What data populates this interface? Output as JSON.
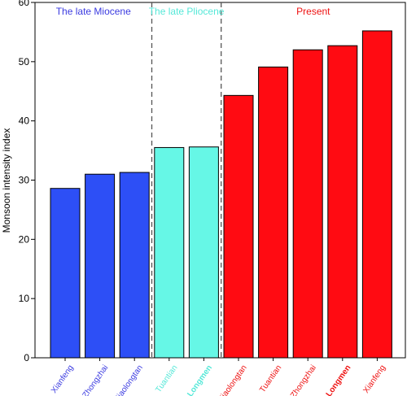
{
  "chart_data": {
    "type": "bar",
    "ylabel": "Monsoon intensity index",
    "ylim": [
      0,
      60
    ],
    "yticks": [
      0,
      10,
      20,
      30,
      40,
      50,
      60
    ],
    "grid": false,
    "groups": [
      {
        "label": "The late Miocene",
        "color": "#2d4ff6",
        "label_color": "#3a3ae0"
      },
      {
        "label": "The late Pliocene",
        "color": "#66f7e6",
        "label_color": "#55e8d8"
      },
      {
        "label": "Present",
        "color": "#ff0b12",
        "label_color": "#ee1111"
      }
    ],
    "bars": [
      {
        "category": "Xianfeng",
        "value": 28.6,
        "group": 0,
        "bold": false
      },
      {
        "category": "Zhongzhai",
        "value": 31.0,
        "group": 0,
        "bold": false
      },
      {
        "category": "Xiaolongtan",
        "value": 31.3,
        "group": 0,
        "bold": false
      },
      {
        "category": "Tuantian",
        "value": 35.5,
        "group": 1,
        "bold": false
      },
      {
        "category": "Longmen",
        "value": 35.6,
        "group": 1,
        "bold": true
      },
      {
        "category": "Xiaolongtan",
        "value": 44.3,
        "group": 2,
        "bold": false
      },
      {
        "category": "Tuantian",
        "value": 49.1,
        "group": 2,
        "bold": false
      },
      {
        "category": "Zhongzhai",
        "value": 52.0,
        "group": 2,
        "bold": false
      },
      {
        "category": "Longmen",
        "value": 52.7,
        "group": 2,
        "bold": true
      },
      {
        "category": "Xianfeng",
        "value": 55.2,
        "group": 2,
        "bold": false
      }
    ]
  }
}
